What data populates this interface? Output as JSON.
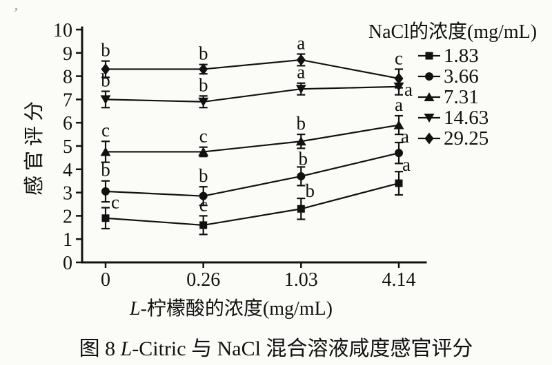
{
  "figure": {
    "caption_parts": [
      {
        "text": "图 8   ",
        "italic": false
      },
      {
        "text": "L",
        "italic": true
      },
      {
        "text": "-Citric 与 NaCl 混合溶液咸度感官评分",
        "italic": false
      }
    ]
  },
  "chart_data": {
    "type": "line",
    "title": "",
    "xlabel_parts": [
      {
        "text": "L",
        "italic": true
      },
      {
        "text": "-柠檬酸的浓度(mg/mL)",
        "italic": false
      }
    ],
    "ylabel": "感官评分",
    "categories": [
      "0",
      "0.26",
      "1.03",
      "4.14"
    ],
    "ylim": [
      0,
      10
    ],
    "yticks": [
      0,
      1,
      2,
      3,
      4,
      5,
      6,
      7,
      8,
      9,
      10
    ],
    "grid": false,
    "legend": {
      "title": "NaCl的浓度(mg/mL)",
      "position": "top-right"
    },
    "series": [
      {
        "name": "1.83",
        "marker": "square",
        "values": [
          1.9,
          1.6,
          2.3,
          3.4
        ],
        "errors": [
          0.45,
          0.4,
          0.45,
          0.5
        ],
        "point_labels": [
          "c",
          "c",
          "b",
          "a"
        ],
        "label_offsets": [
          [
            14,
            8
          ],
          [
            0,
            0
          ],
          [
            13,
            5
          ],
          [
            11,
            6
          ]
        ]
      },
      {
        "name": "3.66",
        "marker": "circle",
        "values": [
          3.05,
          2.85,
          3.7,
          4.7
        ],
        "errors": [
          0.45,
          0.4,
          0.4,
          0.45
        ],
        "point_labels": [
          "b",
          "b",
          "b",
          "a"
        ],
        "label_offsets": [
          [
            0,
            0
          ],
          [
            0,
            0
          ],
          [
            3,
            4
          ],
          [
            9,
            7
          ]
        ]
      },
      {
        "name": "7.31",
        "marker": "triangle-up",
        "values": [
          4.75,
          4.75,
          5.2,
          5.9
        ],
        "errors": [
          0.45,
          0.2,
          0.3,
          0.4
        ],
        "point_labels": [
          "c",
          "c",
          "b",
          "a"
        ],
        "label_offsets": [
          [
            0,
            0
          ],
          [
            0,
            0
          ],
          [
            0,
            0
          ],
          [
            0,
            0
          ]
        ]
      },
      {
        "name": "14.63",
        "marker": "triangle-down",
        "values": [
          7.0,
          6.9,
          7.45,
          7.55
        ],
        "errors": [
          0.35,
          0.25,
          0.25,
          0.35
        ],
        "point_labels": [
          "b",
          "b",
          "a",
          "a"
        ],
        "label_offsets": [
          [
            0,
            0
          ],
          [
            0,
            0
          ],
          [
            0,
            0
          ],
          [
            14,
            32
          ]
        ]
      },
      {
        "name": "29.25",
        "marker": "diamond",
        "values": [
          8.3,
          8.3,
          8.7,
          7.9
        ],
        "errors": [
          0.35,
          0.2,
          0.25,
          0.4
        ],
        "point_labels": [
          "b",
          "b",
          "a",
          "c"
        ],
        "label_offsets": [
          [
            0,
            0
          ],
          [
            0,
            0
          ],
          [
            0,
            0
          ],
          [
            0,
            0
          ]
        ]
      }
    ],
    "colors": {
      "ink": "#111111",
      "background": "#fbfbf8"
    }
  }
}
